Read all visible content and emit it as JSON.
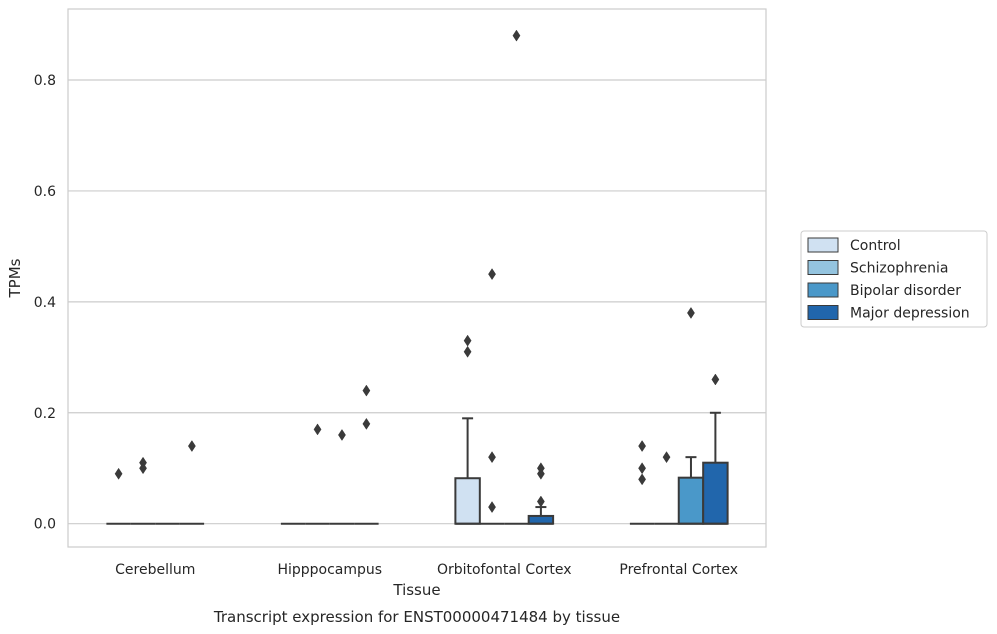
{
  "chart_data": {
    "type": "box",
    "title": "Transcript expression for ENST00000471484 by tissue",
    "xlabel": "Tissue",
    "ylabel": "TPMs",
    "ylim": [
      -0.042,
      0.928
    ],
    "yticks": [
      0.0,
      0.2,
      0.4,
      0.6,
      0.8
    ],
    "ytick_labels": [
      "0.0",
      "0.2",
      "0.4",
      "0.6",
      "0.8"
    ],
    "grid": "horizontal",
    "legend_position": "center-right",
    "categories": [
      "Cerebellum",
      "Hipppocampus",
      "Orbitofontal Cortex",
      "Prefrontal Cortex"
    ],
    "series": [
      {
        "name": "Control",
        "color": "#d0e1f2",
        "boxes": [
          {
            "q1": 0,
            "median": 0,
            "q3": 0,
            "whislo": 0,
            "whishi": 0,
            "outliers": [
              0.09
            ]
          },
          {
            "q1": 0,
            "median": 0,
            "q3": 0,
            "whislo": 0,
            "whishi": 0,
            "outliers": []
          },
          {
            "q1": 0,
            "median": 0,
            "q3": 0.082,
            "whislo": 0,
            "whishi": 0.19,
            "outliers": [
              0.33,
              0.31
            ]
          },
          {
            "q1": 0,
            "median": 0,
            "q3": 0,
            "whislo": 0,
            "whishi": 0,
            "outliers": [
              0.14,
              0.1,
              0.08
            ]
          }
        ]
      },
      {
        "name": "Schizophrenia",
        "color": "#94c4df",
        "boxes": [
          {
            "q1": 0,
            "median": 0,
            "q3": 0,
            "whislo": 0,
            "whishi": 0,
            "outliers": [
              0.11,
              0.1
            ]
          },
          {
            "q1": 0,
            "median": 0,
            "q3": 0,
            "whislo": 0,
            "whishi": 0,
            "outliers": [
              0.17
            ]
          },
          {
            "q1": 0,
            "median": 0,
            "q3": 0,
            "whislo": 0,
            "whishi": 0,
            "outliers": [
              0.45,
              0.12,
              0.03
            ]
          },
          {
            "q1": 0,
            "median": 0,
            "q3": 0,
            "whislo": 0,
            "whishi": 0,
            "outliers": [
              0.12
            ]
          }
        ]
      },
      {
        "name": "Bipolar disorder",
        "color": "#4a98c9",
        "boxes": [
          {
            "q1": 0,
            "median": 0,
            "q3": 0,
            "whislo": 0,
            "whishi": 0,
            "outliers": []
          },
          {
            "q1": 0,
            "median": 0,
            "q3": 0,
            "whislo": 0,
            "whishi": 0,
            "outliers": [
              0.16
            ]
          },
          {
            "q1": 0,
            "median": 0,
            "q3": 0,
            "whislo": 0,
            "whishi": 0,
            "outliers": [
              0.88
            ]
          },
          {
            "q1": 0,
            "median": 0,
            "q3": 0.083,
            "whislo": 0,
            "whishi": 0.12,
            "outliers": [
              0.38
            ]
          }
        ]
      },
      {
        "name": "Major depression",
        "color": "#2166ac",
        "boxes": [
          {
            "q1": 0,
            "median": 0,
            "q3": 0,
            "whislo": 0,
            "whishi": 0,
            "outliers": [
              0.14
            ]
          },
          {
            "q1": 0,
            "median": 0,
            "q3": 0,
            "whislo": 0,
            "whishi": 0,
            "outliers": [
              0.24,
              0.18
            ]
          },
          {
            "q1": 0,
            "median": 0,
            "q3": 0.014,
            "whislo": 0,
            "whishi": 0.03,
            "outliers": [
              0.1,
              0.09,
              0.04
            ]
          },
          {
            "q1": 0,
            "median": 0,
            "q3": 0.11,
            "whislo": 0,
            "whishi": 0.2,
            "outliers": [
              0.26
            ]
          }
        ]
      }
    ]
  }
}
